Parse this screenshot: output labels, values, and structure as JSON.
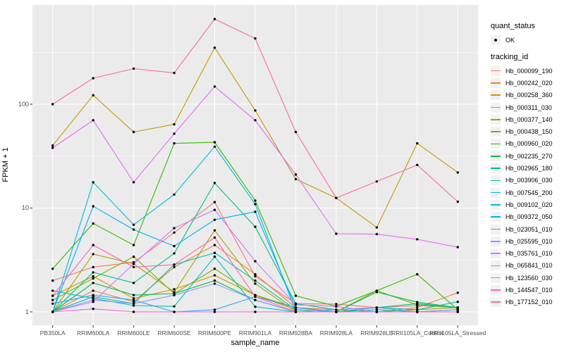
{
  "chart_data": {
    "type": "line",
    "title": "",
    "xlabel": "sample_name",
    "ylabel": "FPKM + 1",
    "y_scale": "log10",
    "y_ticks": [
      1,
      10,
      100
    ],
    "y_minor_gridlines": [
      3.162,
      31.62,
      316.2
    ],
    "ylim": [
      0.74,
      900
    ],
    "grid": "on",
    "panel_bg": "#EBEBEB",
    "grid_color": "#FFFFFF",
    "tick_color": "#333333",
    "tick_label_color": "#4d4d4d",
    "point_color": "#000000",
    "categories": [
      "PB350LA",
      "RRIM600LA",
      "RRIM600LE",
      "RRIM600SE",
      "RRIM600PE",
      "RRIM901LA",
      "RRIM928BA",
      "RRIM928LA",
      "RRIM928LE",
      "RRII105LA_Control",
      "RRII105LA_Stressed"
    ],
    "legend": {
      "position": "right",
      "quant_status_title": "quant_status",
      "quant_status_items": [
        {
          "label": "OK",
          "symbol": "point"
        }
      ],
      "tracking_title": "tracking_id"
    },
    "series": [
      {
        "name": "Hb_000099_190",
        "color": "#F8766D",
        "values": [
          2.0,
          2.7,
          3.0,
          5.8,
          11.4,
          2.2,
          1.2,
          1.19,
          1.1,
          1.15,
          1.1
        ]
      },
      {
        "name": "Hb_000242_020",
        "color": "#EA8331",
        "values": [
          1.0,
          1.6,
          1.25,
          2.7,
          4.4,
          2.3,
          1.1,
          1.05,
          1.0,
          1.1,
          1.53
        ]
      },
      {
        "name": "Hb_000258_360",
        "color": "#D89000",
        "values": [
          1.43,
          2.2,
          1.35,
          1.65,
          2.25,
          1.45,
          1.05,
          1.0,
          1.0,
          1.0,
          1.05
        ]
      },
      {
        "name": "Hb_000311_030",
        "color": "#C09B00",
        "values": [
          40,
          122,
          54,
          64,
          350,
          87,
          19,
          12.5,
          6.5,
          42,
          22
        ]
      },
      {
        "name": "Hb_000377_140",
        "color": "#A3A500",
        "values": [
          1.0,
          3.6,
          2.9,
          1.55,
          6.1,
          1.87,
          1.0,
          1.0,
          1.0,
          1.05,
          1.1
        ]
      },
      {
        "name": "Hb_000438_150",
        "color": "#7CAE00",
        "values": [
          1.3,
          2.1,
          3.4,
          1.5,
          2.6,
          1.45,
          1.1,
          1.0,
          1.6,
          1.17,
          1.1
        ]
      },
      {
        "name": "Hb_000960_020",
        "color": "#39B600",
        "values": [
          2.6,
          7.1,
          4.4,
          42,
          43,
          11.8,
          1.43,
          1.13,
          1.6,
          2.3,
          1.05
        ]
      },
      {
        "name": "Hb_002235_270",
        "color": "#00BB4E",
        "values": [
          1.0,
          1.9,
          1.45,
          1.5,
          2.0,
          1.3,
          1.0,
          1.0,
          1.55,
          1.24,
          1.1
        ]
      },
      {
        "name": "Hb_002965_180",
        "color": "#00BF7D",
        "values": [
          1.0,
          2.4,
          1.9,
          3.66,
          17.4,
          6.6,
          1.2,
          1.05,
          1.1,
          1.2,
          1.1
        ]
      },
      {
        "name": "Hb_003906_030",
        "color": "#00C1A3",
        "values": [
          1.0,
          1.4,
          1.2,
          2.85,
          3.7,
          2.0,
          1.05,
          1.0,
          1.1,
          1.05,
          1.25
        ]
      },
      {
        "name": "Hb_007545_200",
        "color": "#00BFC4",
        "values": [
          1.6,
          1.35,
          1.15,
          1.13,
          3.4,
          1.12,
          1.0,
          1.0,
          1.05,
          1.0,
          1.05
        ]
      },
      {
        "name": "Hb_009102_020",
        "color": "#00BAE0",
        "values": [
          1.0,
          17.7,
          6.9,
          13.5,
          39,
          10.9,
          1.0,
          1.0,
          1.0,
          1.0,
          1.0
        ]
      },
      {
        "name": "Hb_009372_050",
        "color": "#00B0F6",
        "values": [
          1.0,
          10.4,
          6.2,
          4.3,
          7.7,
          9.2,
          1.1,
          1.0,
          1.0,
          1.0,
          1.0
        ]
      },
      {
        "name": "Hb_023051_010",
        "color": "#35A2FF",
        "values": [
          1.2,
          1.45,
          1.3,
          1.0,
          1.05,
          1.4,
          1.1,
          1.0,
          1.0,
          1.0,
          1.0
        ]
      },
      {
        "name": "Hb_025595_010",
        "color": "#9590FF",
        "values": [
          1.0,
          1.3,
          1.2,
          1.45,
          1.87,
          1.3,
          1.0,
          1.05,
          1.1,
          1.0,
          1.05
        ]
      },
      {
        "name": "Hb_035761_010",
        "color": "#C77CFF",
        "values": [
          1.0,
          1.25,
          2.9,
          6.4,
          9.6,
          3.07,
          1.17,
          1.13,
          1.0,
          1.0,
          1.0
        ]
      },
      {
        "name": "Hb_065841_010",
        "color": "#E76BF3",
        "values": [
          38,
          70,
          17.7,
          52,
          148,
          70,
          21,
          5.66,
          5.6,
          5.0,
          4.2
        ]
      },
      {
        "name": "Hb_123560_030",
        "color": "#FA62DB",
        "values": [
          1.0,
          1.07,
          1.0,
          1.0,
          1.0,
          1.0,
          1.0,
          1.0,
          1.0,
          1.0,
          1.0
        ]
      },
      {
        "name": "Hb_144547_010",
        "color": "#FF62BC",
        "values": [
          1.43,
          4.4,
          2.7,
          2.85,
          5.2,
          1.4,
          1.0,
          1.0,
          1.0,
          1.0,
          1.0
        ]
      },
      {
        "name": "Hb_177152_010",
        "color": "#FF6A98",
        "values": [
          100,
          178,
          220,
          200,
          660,
          430,
          54,
          12.5,
          18,
          26,
          11.5
        ]
      }
    ]
  }
}
